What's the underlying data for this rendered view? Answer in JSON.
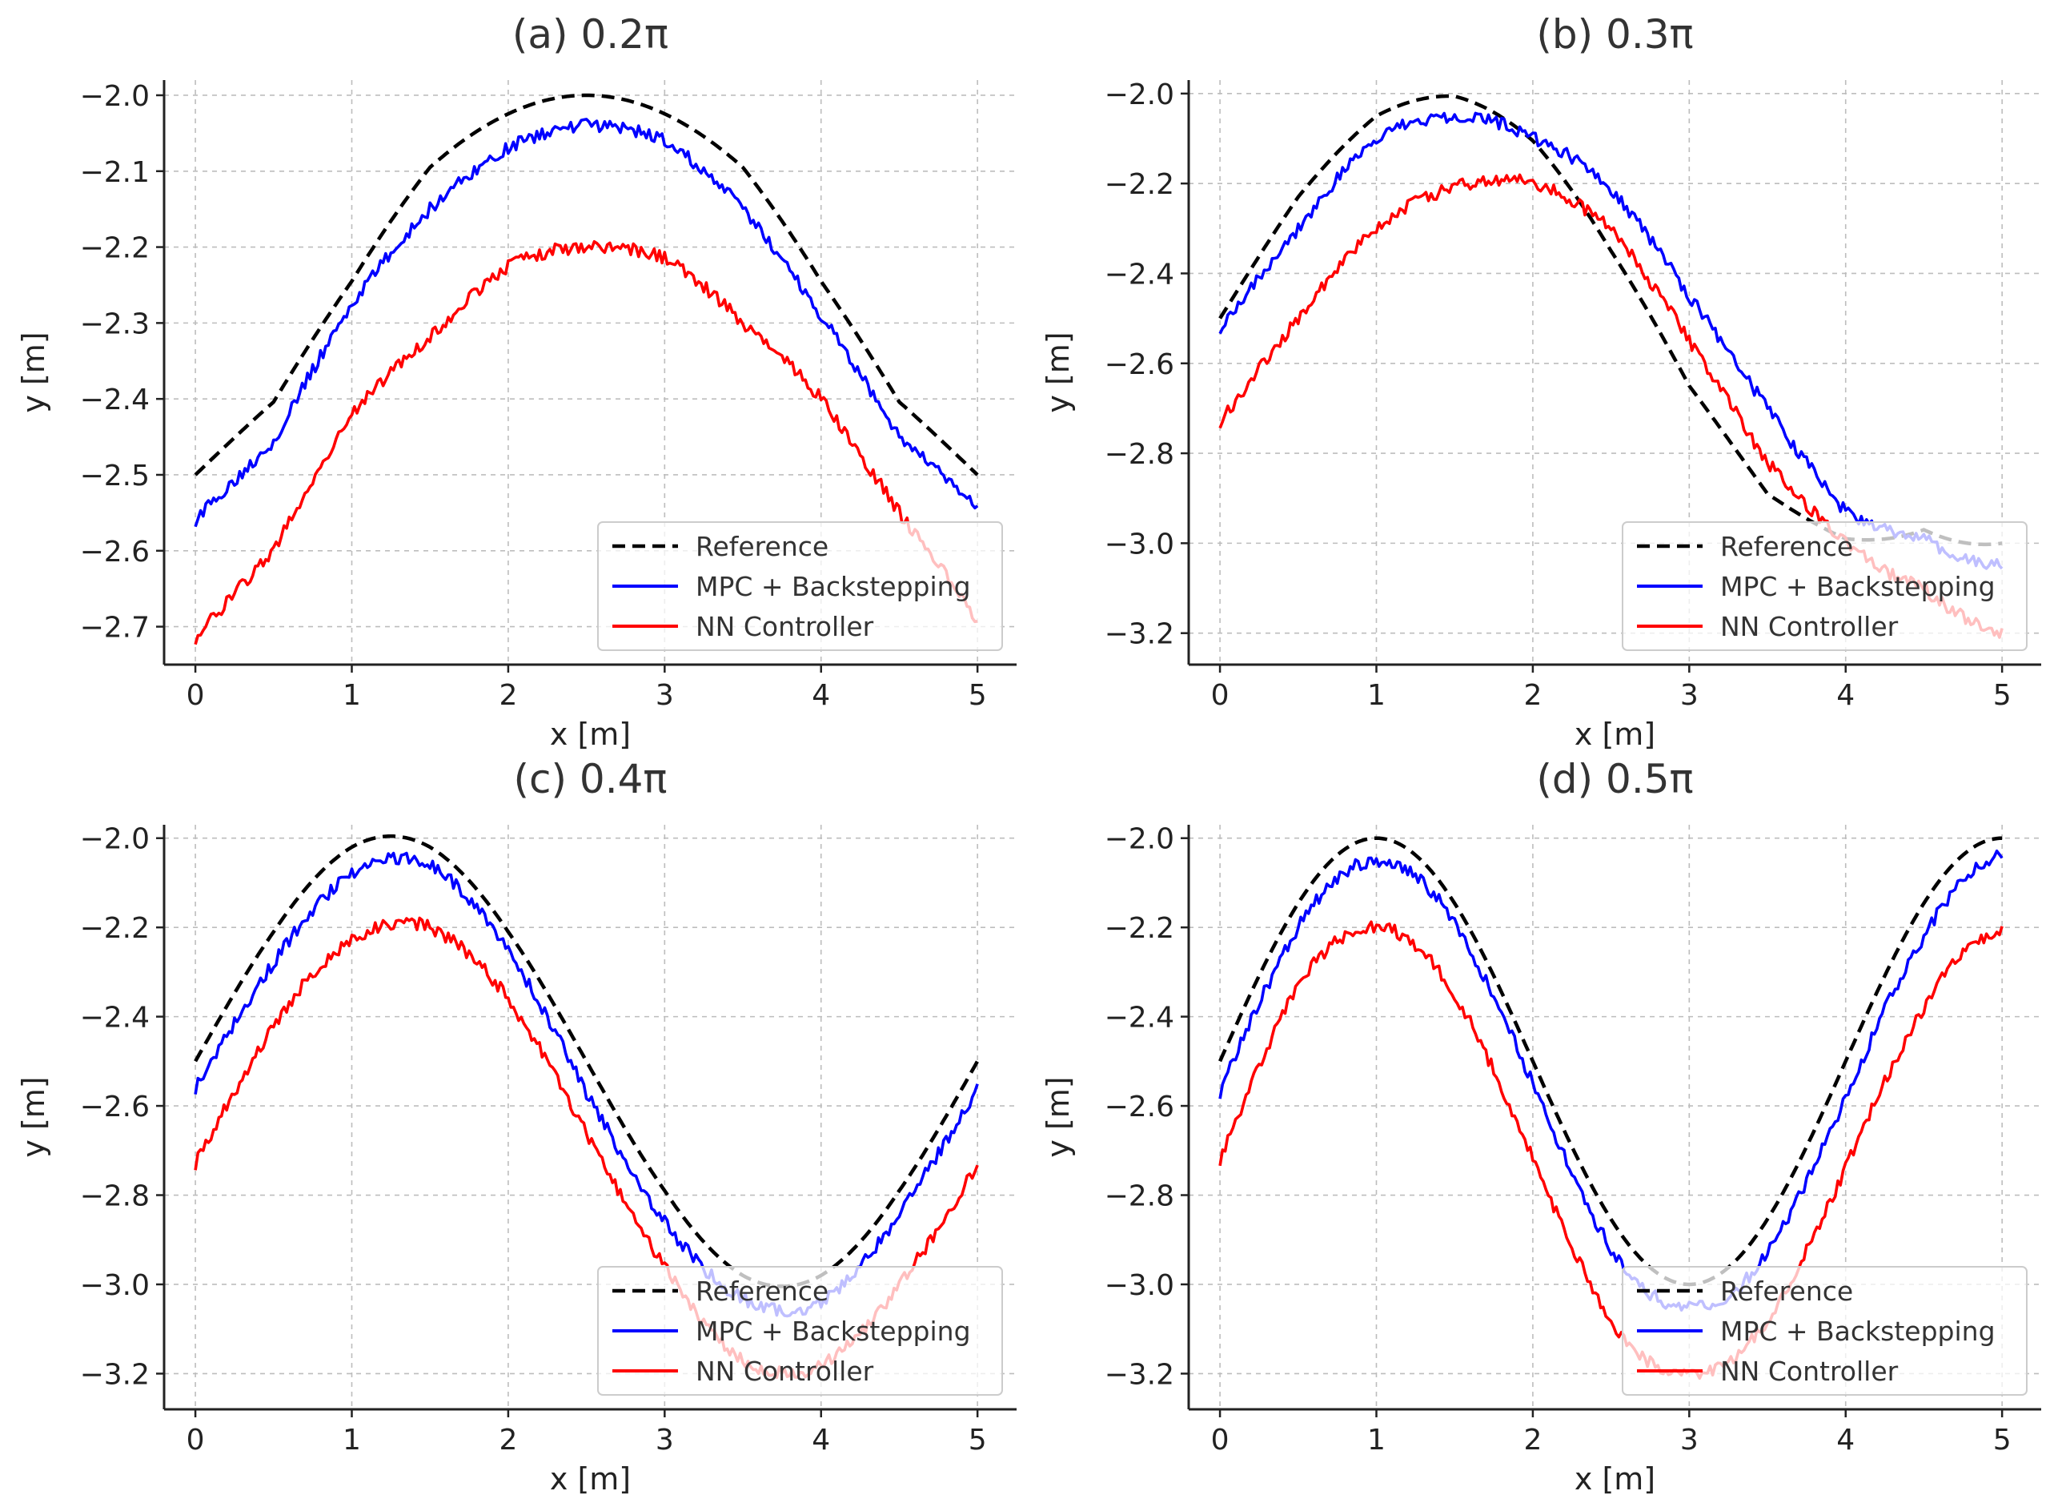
{
  "figure": {
    "colors": {
      "reference": "#000000",
      "mpc": "#0000ff",
      "nn": "#ff0000"
    },
    "legend_entries": [
      "Reference",
      "MPC + Backstepping",
      "NN Controller"
    ]
  },
  "chart_data": [
    {
      "type": "line",
      "title": "(a) 0.2π",
      "xlabel": "x [m]",
      "ylabel": "y [m]",
      "xlim": [
        -0.2,
        5.25
      ],
      "ylim": [
        -2.75,
        -1.98
      ],
      "xticks": [
        0,
        1,
        2,
        3,
        4,
        5
      ],
      "xtick_labels": [
        "0",
        "1",
        "2",
        "3",
        "4",
        "5"
      ],
      "yticks": [
        -2.0,
        -2.1,
        -2.2,
        -2.3,
        -2.4,
        -2.5,
        -2.6,
        -2.7
      ],
      "ytick_labels": [
        "−2.0",
        "−2.1",
        "−2.2",
        "−2.3",
        "−2.4",
        "−2.5",
        "−2.6",
        "−2.7"
      ],
      "grid": true,
      "legend": "lower-right",
      "freq_pi": 0.2,
      "series": [
        {
          "name": "Reference",
          "style": "dashed",
          "x": [
            0,
            0.5,
            1.0,
            1.5,
            2.0,
            2.5,
            3.0,
            3.5,
            4.0,
            4.5,
            5.0
          ],
          "y": [
            -2.5,
            -2.404,
            -2.245,
            -2.095,
            -2.0245,
            -2.0,
            -2.0245,
            -2.095,
            -2.245,
            -2.404,
            -2.5
          ]
        },
        {
          "name": "MPC + Backstepping",
          "style": "solid",
          "x": [
            0,
            0.5,
            1.0,
            1.5,
            2.0,
            2.5,
            3.0,
            3.5,
            4.0,
            4.5,
            5.0
          ],
          "y": [
            -2.56,
            -2.455,
            -2.275,
            -2.15,
            -2.07,
            -2.04,
            -2.06,
            -2.15,
            -2.29,
            -2.45,
            -2.545
          ]
        },
        {
          "name": "NN Controller",
          "style": "solid",
          "x": [
            0,
            0.5,
            1.0,
            1.5,
            2.0,
            2.5,
            3.0,
            3.5,
            4.0,
            4.5,
            5.0
          ],
          "y": [
            -2.715,
            -2.6,
            -2.42,
            -2.32,
            -2.225,
            -2.2,
            -2.215,
            -2.3,
            -2.4,
            -2.55,
            -2.69
          ]
        }
      ]
    },
    {
      "type": "line",
      "title": "(b) 0.3π",
      "xlabel": "x [m]",
      "ylabel": "y [m]",
      "xlim": [
        -0.2,
        5.25
      ],
      "ylim": [
        -3.27,
        -1.97
      ],
      "xticks": [
        0,
        1,
        2,
        3,
        4,
        5
      ],
      "xtick_labels": [
        "0",
        "1",
        "2",
        "3",
        "4",
        "5"
      ],
      "yticks": [
        -2.0,
        -2.2,
        -2.4,
        -2.6,
        -2.8,
        -3.0,
        -3.2
      ],
      "ytick_labels": [
        "−2.0",
        "−2.2",
        "−2.4",
        "−2.6",
        "−2.8",
        "−3.0",
        "−3.2"
      ],
      "grid": true,
      "legend": "lower-right",
      "freq_pi": 0.3,
      "series": [
        {
          "name": "Reference",
          "style": "dashed",
          "x": [
            0,
            0.5,
            1.0,
            1.5,
            2.0,
            2.5,
            3.0,
            3.5,
            4.0,
            4.5,
            5.0
          ],
          "y": [
            -2.5,
            -2.23,
            -2.05,
            -2.006,
            -2.105,
            -2.35,
            -2.65,
            -2.89,
            -2.99,
            -2.97,
            -3.0
          ]
        },
        {
          "name": "MPC + Backstepping",
          "style": "solid",
          "x": [
            0,
            0.5,
            1.0,
            1.5,
            2.0,
            2.5,
            3.0,
            3.5,
            4.0,
            4.5,
            5.0
          ],
          "y": [
            -2.52,
            -2.3,
            -2.1,
            -2.05,
            -2.1,
            -2.21,
            -2.45,
            -2.7,
            -2.93,
            -2.99,
            -3.05
          ]
        },
        {
          "name": "NN Controller",
          "style": "solid",
          "x": [
            0,
            0.5,
            1.0,
            1.5,
            2.0,
            2.5,
            3.0,
            3.5,
            4.0,
            4.5,
            5.0
          ],
          "y": [
            -2.73,
            -2.5,
            -2.3,
            -2.21,
            -2.2,
            -2.3,
            -2.55,
            -2.82,
            -3.0,
            -3.1,
            -3.2
          ]
        }
      ]
    },
    {
      "type": "line",
      "title": "(c) 0.4π",
      "xlabel": "x [m]",
      "ylabel": "y [m]",
      "xlim": [
        -0.2,
        5.25
      ],
      "ylim": [
        -3.28,
        -1.97
      ],
      "xticks": [
        0,
        1,
        2,
        3,
        4,
        5
      ],
      "xtick_labels": [
        "0",
        "1",
        "2",
        "3",
        "4",
        "5"
      ],
      "yticks": [
        -2.0,
        -2.2,
        -2.4,
        -2.6,
        -2.8,
        -3.0,
        -3.2
      ],
      "ytick_labels": [
        "−2.0",
        "−2.2",
        "−2.4",
        "−2.6",
        "−2.8",
        "−3.0",
        "−3.2"
      ],
      "grid": true,
      "legend": "lower-right",
      "freq_pi": 0.4,
      "series": [
        {
          "name": "Reference",
          "style": "dashed",
          "x": [
            0,
            0.5,
            1.0,
            1.5,
            2.0,
            2.5,
            3.0,
            3.5,
            4.0,
            4.5,
            5.0
          ],
          "y": [
            -2.5,
            -2.21,
            -2.02,
            -2.02,
            -2.21,
            -2.5,
            -2.79,
            -2.98,
            -2.98,
            -2.79,
            -2.5
          ]
        },
        {
          "name": "MPC + Backstepping",
          "style": "solid",
          "x": [
            0,
            0.5,
            1.0,
            1.5,
            2.0,
            2.5,
            3.0,
            3.5,
            4.0,
            4.5,
            5.0
          ],
          "y": [
            -2.56,
            -2.28,
            -2.08,
            -2.06,
            -2.25,
            -2.57,
            -2.86,
            -3.03,
            -3.04,
            -2.84,
            -2.56
          ]
        },
        {
          "name": "NN Controller",
          "style": "solid",
          "x": [
            0,
            0.5,
            1.0,
            1.5,
            2.0,
            2.5,
            3.0,
            3.5,
            4.0,
            4.5,
            5.0
          ],
          "y": [
            -2.73,
            -2.42,
            -2.23,
            -2.2,
            -2.36,
            -2.66,
            -2.96,
            -3.17,
            -3.18,
            -3.0,
            -2.73
          ]
        }
      ]
    },
    {
      "type": "line",
      "title": "(d) 0.5π",
      "xlabel": "x [m]",
      "ylabel": "y [m]",
      "xlim": [
        -0.2,
        5.25
      ],
      "ylim": [
        -3.28,
        -1.97
      ],
      "xticks": [
        0,
        1,
        2,
        3,
        4,
        5
      ],
      "xtick_labels": [
        "0",
        "1",
        "2",
        "3",
        "4",
        "5"
      ],
      "yticks": [
        -2.0,
        -2.2,
        -2.4,
        -2.6,
        -2.8,
        -3.0,
        -3.2
      ],
      "ytick_labels": [
        "−2.0",
        "−2.2",
        "−2.4",
        "−2.6",
        "−2.8",
        "−3.0",
        "−3.2"
      ],
      "grid": true,
      "legend": "lower-right",
      "freq_pi": 0.5,
      "series": [
        {
          "name": "Reference",
          "style": "dashed",
          "x": [
            0,
            0.5,
            1.0,
            1.5,
            2.0,
            2.5,
            3.0,
            3.5,
            4.0,
            4.5,
            5.0
          ],
          "y": [
            -2.5,
            -2.146,
            -2.0,
            -2.146,
            -2.5,
            -2.854,
            -3.0,
            -2.854,
            -2.5,
            -2.146,
            -2.0
          ]
        },
        {
          "name": "MPC + Backstepping",
          "style": "solid",
          "x": [
            0,
            0.5,
            1.0,
            1.5,
            2.0,
            2.5,
            3.0,
            3.5,
            4.0,
            4.5,
            5.0
          ],
          "y": [
            -2.57,
            -2.2,
            -2.05,
            -2.19,
            -2.55,
            -2.92,
            -3.05,
            -2.93,
            -2.58,
            -2.22,
            -2.04
          ]
        },
        {
          "name": "NN Controller",
          "style": "solid",
          "x": [
            0,
            0.5,
            1.0,
            1.5,
            2.0,
            2.5,
            3.0,
            3.5,
            4.0,
            4.5,
            5.0
          ],
          "y": [
            -2.72,
            -2.33,
            -2.2,
            -2.35,
            -2.72,
            -3.08,
            -3.2,
            -3.08,
            -2.74,
            -2.38,
            -2.21
          ]
        }
      ]
    }
  ]
}
